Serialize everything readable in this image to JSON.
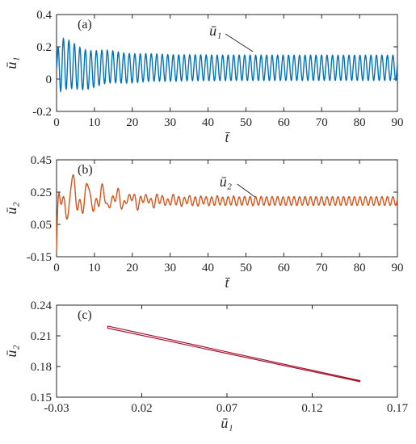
{
  "chart_data": [
    {
      "panel": "(a)",
      "type": "line",
      "xlabel": "t̄",
      "ylabel": "ū₁",
      "xlim": [
        0,
        90
      ],
      "ylim": [
        -0.2,
        0.4
      ],
      "xticks": [
        0,
        10,
        20,
        30,
        40,
        50,
        60,
        70,
        80,
        90
      ],
      "yticks": [
        -0.2,
        0,
        0.2,
        0.4
      ],
      "xtick_labels": [
        "0",
        "10",
        "20",
        "30",
        "40",
        "50",
        "60",
        "70",
        "80",
        "90"
      ],
      "ytick_labels": [
        "-0.2",
        "0",
        "0.2",
        "0.4"
      ],
      "color": "#0072BD",
      "series": [
        {
          "name": "ū₁",
          "description": "damped oscillation settling to a steady periodic oscillation",
          "mean_final": 0.07,
          "amplitude_final": 0.078,
          "period": 1.45,
          "peak_max": 0.27,
          "trough_min": -0.13,
          "transient_decay_time": 30
        }
      ],
      "annotations": [
        {
          "text": "ū₁",
          "at_x": 51
        }
      ]
    },
    {
      "panel": "(b)",
      "type": "line",
      "xlabel": "t̄",
      "ylabel": "ū₂",
      "xlim": [
        0,
        90
      ],
      "ylim": [
        -0.15,
        0.45
      ],
      "xticks": [
        0,
        10,
        20,
        30,
        40,
        50,
        60,
        70,
        80,
        90
      ],
      "yticks": [
        -0.15,
        0.05,
        0.25,
        0.45
      ],
      "xtick_labels": [
        "0",
        "10",
        "20",
        "30",
        "40",
        "50",
        "60",
        "70",
        "80",
        "90"
      ],
      "ytick_labels": [
        "-0.15",
        "0.05",
        "0.25",
        "0.45"
      ],
      "color": "#D95319",
      "series": [
        {
          "name": "ū₂",
          "description": "large irregular transient settling to a small periodic oscillation",
          "mean_final": 0.195,
          "amplitude_final": 0.027,
          "period": 1.45,
          "peak_max": 0.43,
          "trough_min": -0.12,
          "transient_decay_time": 35
        }
      ],
      "annotations": [
        {
          "text": "ū₂",
          "at_x": 46
        }
      ]
    },
    {
      "panel": "(c)",
      "type": "line",
      "xlabel": "ū₁",
      "ylabel": "ū₂",
      "xlim": [
        -0.03,
        0.17
      ],
      "ylim": [
        0.15,
        0.24
      ],
      "xticks": [
        -0.03,
        0.02,
        0.07,
        0.12,
        0.17
      ],
      "yticks": [
        0.15,
        0.18,
        0.21,
        0.24
      ],
      "xtick_labels": [
        "-0.03",
        "0.02",
        "0.07",
        "0.12",
        "0.17"
      ],
      "ytick_labels": [
        "0.15",
        "0.18",
        "0.21",
        "0.24"
      ],
      "color": "#A2142F",
      "series": [
        {
          "name": "phase portrait (limit cycle)",
          "x": [
            0.0,
            0.148,
            0.0
          ],
          "y_upper": [
            0.2195,
            0.1662,
            0.2195
          ],
          "y_lower": [
            0.2175,
            0.1652,
            0.2175
          ]
        }
      ]
    }
  ]
}
